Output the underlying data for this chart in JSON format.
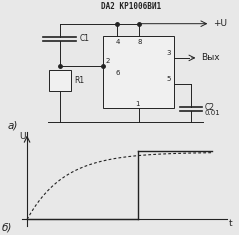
{
  "title_circuit": "DA2 КР1006ВИ1",
  "label_a": "а)",
  "label_b": "б)",
  "label_u": "U",
  "label_t": "t",
  "label_vyx": "Вых",
  "label_plus_u": "+U",
  "label_c1": "C1",
  "label_c2": "C2",
  "label_c2_val": "0.01",
  "label_r1": "R1",
  "pin2": "2",
  "pin4": "4",
  "pin6": "6",
  "pin8": "8",
  "pin3": "3",
  "pin5": "5",
  "pin1": "1",
  "bg_color": "#e8e8e8",
  "line_color": "#222222",
  "trigger_t": 0.6,
  "t_max": 1.0,
  "rc_amplitude": 0.88,
  "high_level": 0.9,
  "font_size_title": 5.5,
  "font_size_label": 6.5,
  "font_size_pin": 5,
  "font_size_comp": 5.5
}
